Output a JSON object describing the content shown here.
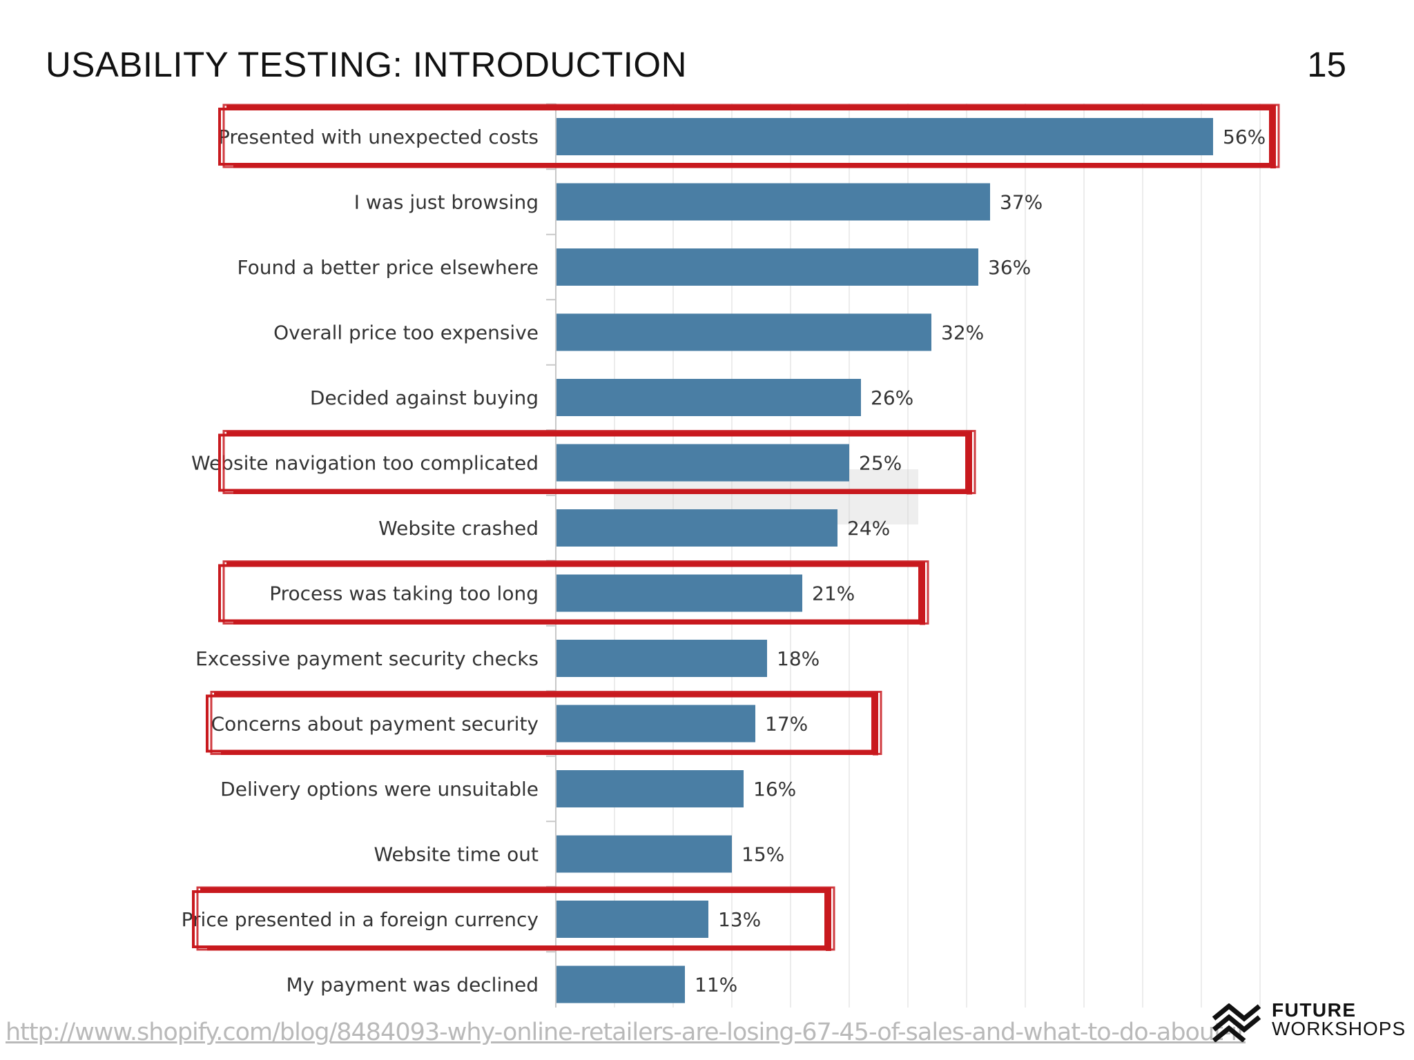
{
  "slide": {
    "title": "USABILITY TESTING: INTRODUCTION",
    "page_number": "15",
    "source_url": "http://www.shopify.com/blog/8484093-why-online-retailers-are-losing-67-45-of-sales-and-what-to-do-about-it"
  },
  "logo": {
    "line1": "FUTURE",
    "line2": "WORKSHOPS",
    "icon": "future-workshops-logo-icon"
  },
  "chart_data": {
    "type": "bar",
    "orientation": "horizontal",
    "categories": [
      "Presented with unexpected costs",
      "I was just browsing",
      "Found a better price elsewhere",
      "Overall price too expensive",
      "Decided against buying",
      "Website navigation too complicated",
      "Website crashed",
      "Process was taking too long",
      "Excessive payment security checks",
      "Concerns about payment security",
      "Delivery options were unsuitable",
      "Website time out",
      "Price presented in a foreign currency",
      "My payment was declined"
    ],
    "values": [
      56,
      37,
      36,
      32,
      26,
      25,
      24,
      21,
      18,
      17,
      16,
      15,
      13,
      11
    ],
    "value_labels": [
      "56%",
      "37%",
      "36%",
      "32%",
      "26%",
      "25%",
      "24%",
      "21%",
      "18%",
      "17%",
      "16%",
      "15%",
      "13%",
      "11%"
    ],
    "highlighted": [
      0,
      5,
      7,
      9,
      12
    ],
    "xlim": [
      0,
      60
    ],
    "grid": true,
    "bar_color": "#4a7ea4",
    "highlight_color": "#c8191e"
  }
}
